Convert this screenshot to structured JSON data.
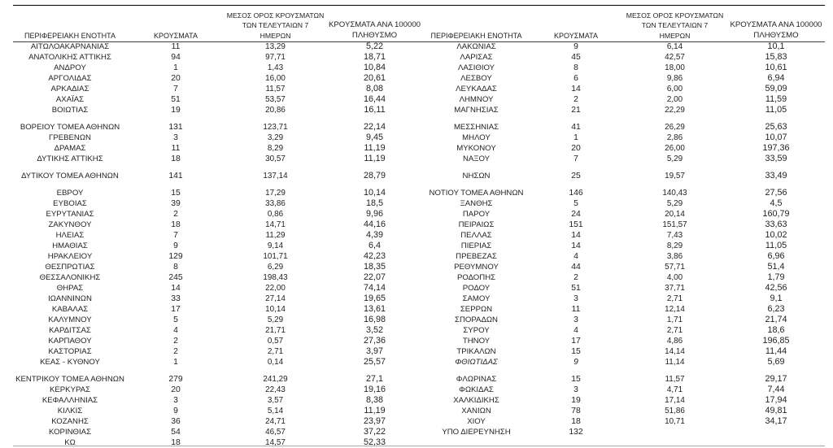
{
  "page": {
    "background": "#ffffff",
    "text_color": "#1f1f1f"
  },
  "styles": {
    "top_border_color": "#000000",
    "header_rule_color": "#3f3f3f",
    "bottom_border_color": "#a8a8a8"
  },
  "table": {
    "columns": {
      "region": "ΠΕΡΙΦΕΡΕΙΑΚΗ ΕΝΟΤΗΤΑ",
      "cases": "ΚΡΟΥΣΜΑΤΑ",
      "avg7_lines": [
        "ΜΕΣΟΣ ΟΡΟΣ ΚΡΟΥΣΜΑΤΩΝ",
        "ΤΩΝ ΤΕΛΕΥΤΑΙΩΝ 7",
        "ΗΜΕΡΩΝ"
      ],
      "per100k_lines": [
        "ΚΡΟΥΣΜΑΤΑ ΑΝΑ 100000",
        "ΠΛΗΘΥΣΜΟ"
      ]
    },
    "left_rows": [
      {
        "region": "ΑΙΤΩΛΟΑΚΑΡΝΑΝΙΑΣ",
        "cases": "11",
        "avg7": "13,29",
        "per100k": "5,22"
      },
      {
        "region": "ΑΝΑΤΟΛΙΚΗΣ ΑΤΤΙΚΗΣ",
        "cases": "94",
        "avg7": "97,71",
        "per100k": "18,71"
      },
      {
        "region": "ΑΝΔΡΟΥ",
        "cases": "1",
        "avg7": "1,43",
        "per100k": "10,84"
      },
      {
        "region": "ΑΡΓΟΛΙΔΑΣ",
        "cases": "20",
        "avg7": "16,00",
        "per100k": "20,61"
      },
      {
        "region": "ΑΡΚΑΔΙΑΣ",
        "cases": "7",
        "avg7": "11,57",
        "per100k": "8,08"
      },
      {
        "region": "ΑΧΑΪΑΣ",
        "cases": "51",
        "avg7": "53,57",
        "per100k": "16,44"
      },
      {
        "region": "ΒΟΙΩΤΙΑΣ",
        "cases": "19",
        "avg7": "20,86",
        "per100k": "16,11"
      },
      {
        "sep": true
      },
      {
        "region": "ΒΟΡΕΙΟΥ ΤΟΜΕΑ ΑΘΗΝΩΝ",
        "cases": "131",
        "avg7": "123,71",
        "per100k": "22,14"
      },
      {
        "region": "ΓΡΕΒΕΝΩΝ",
        "cases": "3",
        "avg7": "3,29",
        "per100k": "9,45"
      },
      {
        "region": "ΔΡΑΜΑΣ",
        "cases": "11",
        "avg7": "8,29",
        "per100k": "11,19"
      },
      {
        "region": "ΔΥΤΙΚΗΣ ΑΤΤΙΚΗΣ",
        "cases": "18",
        "avg7": "30,57",
        "per100k": "11,19"
      },
      {
        "sep": true
      },
      {
        "region": "ΔΥΤΙΚΟΥ ΤΟΜΕΑ ΑΘΗΝΩΝ",
        "cases": "141",
        "avg7": "137,14",
        "per100k": "28,79"
      },
      {
        "sep": true
      },
      {
        "region": "ΕΒΡΟΥ",
        "cases": "15",
        "avg7": "17,29",
        "per100k": "10,14"
      },
      {
        "region": "ΕΥΒΟΙΑΣ",
        "cases": "39",
        "avg7": "33,86",
        "per100k": "18,5"
      },
      {
        "region": "ΕΥΡΥΤΑΝΙΑΣ",
        "cases": "2",
        "avg7": "0,86",
        "per100k": "9,96"
      },
      {
        "region": "ΖΑΚΥΝΘΟΥ",
        "cases": "18",
        "avg7": "14,71",
        "per100k": "44,16"
      },
      {
        "region": "ΗΛΕΙΑΣ",
        "cases": "7",
        "avg7": "11,29",
        "per100k": "4,39"
      },
      {
        "region": "ΗΜΑΘΙΑΣ",
        "cases": "9",
        "avg7": "9,14",
        "per100k": "6,4"
      },
      {
        "region": "ΗΡΑΚΛΕΙΟΥ",
        "cases": "129",
        "avg7": "101,71",
        "per100k": "42,23"
      },
      {
        "region": "ΘΕΣΠΡΩΤΙΑΣ",
        "cases": "8",
        "avg7": "6,29",
        "per100k": "18,35"
      },
      {
        "region": "ΘΕΣΣΑΛΟΝΙΚΗΣ",
        "cases": "245",
        "avg7": "198,43",
        "per100k": "22,07"
      },
      {
        "region": "ΘΗΡΑΣ",
        "cases": "14",
        "avg7": "22,00",
        "per100k": "74,14"
      },
      {
        "region": "ΙΩΑΝΝΙΝΩΝ",
        "cases": "33",
        "avg7": "27,14",
        "per100k": "19,65"
      },
      {
        "region": "ΚΑΒΑΛΑΣ",
        "cases": "17",
        "avg7": "10,14",
        "per100k": "13,61"
      },
      {
        "region": "ΚΑΛΥΜΝΟΥ",
        "cases": "5",
        "avg7": "5,29",
        "per100k": "16,98"
      },
      {
        "region": "ΚΑΡΔΙΤΣΑΣ",
        "cases": "4",
        "avg7": "21,71",
        "per100k": "3,52"
      },
      {
        "region": "ΚΑΡΠΑΘΟΥ",
        "cases": "2",
        "avg7": "0,57",
        "per100k": "27,36"
      },
      {
        "region": "ΚΑΣΤΟΡΙΑΣ",
        "cases": "2",
        "avg7": "2,71",
        "per100k": "3,97"
      },
      {
        "region": "ΚΕΑΣ - ΚΥΘΝΟΥ",
        "cases": "1",
        "avg7": "0,14",
        "per100k": "25,57"
      },
      {
        "sep": true
      },
      {
        "region": "ΚΕΝΤΡΙΚΟΥ ΤΟΜΕΑ ΑΘΗΝΩΝ",
        "cases": "279",
        "avg7": "241,29",
        "per100k": "27,1"
      },
      {
        "region": "ΚΕΡΚΥΡΑΣ",
        "cases": "20",
        "avg7": "22,43",
        "per100k": "19,16"
      },
      {
        "region": "ΚΕΦΑΛΛΗΝΙΑΣ",
        "cases": "3",
        "avg7": "3,57",
        "per100k": "8,38"
      },
      {
        "region": "ΚΙΛΚΙΣ",
        "cases": "9",
        "avg7": "5,14",
        "per100k": "11,19"
      },
      {
        "region": "ΚΟΖΑΝΗΣ",
        "cases": "36",
        "avg7": "24,71",
        "per100k": "23,97"
      },
      {
        "region": "ΚΟΡΙΝΘΙΑΣ",
        "cases": "54",
        "avg7": "46,57",
        "per100k": "37,22"
      },
      {
        "region": "ΚΩ",
        "cases": "18",
        "avg7": "14,57",
        "per100k": "52,33"
      }
    ],
    "right_rows": [
      {
        "region": "ΛΑΚΩΝΙΑΣ",
        "cases": "9",
        "avg7": "6,14",
        "per100k": "10,1"
      },
      {
        "region": "ΛΑΡΙΣΑΣ",
        "cases": "45",
        "avg7": "42,57",
        "per100k": "15,83"
      },
      {
        "region": "ΛΑΣΙΘΙΟΥ",
        "cases": "8",
        "avg7": "18,00",
        "per100k": "10,61"
      },
      {
        "region": "ΛΕΣΒΟΥ",
        "cases": "6",
        "avg7": "9,86",
        "per100k": "6,94"
      },
      {
        "region": "ΛΕΥΚΑΔΑΣ",
        "cases": "14",
        "avg7": "6,00",
        "per100k": "59,09"
      },
      {
        "region": "ΛΗΜΝΟΥ",
        "cases": "2",
        "avg7": "2,00",
        "per100k": "11,59"
      },
      {
        "region": "ΜΑΓΝΗΣΙΑΣ",
        "cases": "21",
        "avg7": "22,29",
        "per100k": "11,05"
      },
      {
        "sep": true
      },
      {
        "region": "ΜΕΣΣΗΝΙΑΣ",
        "cases": "41",
        "avg7": "26,29",
        "per100k": "25,63"
      },
      {
        "region": "ΜΗΛΟΥ",
        "cases": "1",
        "avg7": "2,86",
        "per100k": "10,07"
      },
      {
        "region": "ΜΥΚΟΝΟΥ",
        "cases": "20",
        "avg7": "26,00",
        "per100k": "197,36"
      },
      {
        "region": "ΝΑΞΟΥ",
        "cases": "7",
        "avg7": "5,29",
        "per100k": "33,59"
      },
      {
        "sep": true
      },
      {
        "region": "ΝΗΣΩΝ",
        "cases": "25",
        "avg7": "19,57",
        "per100k": "33,49"
      },
      {
        "sep": true
      },
      {
        "region": "ΝΟΤΙΟΥ ΤΟΜΕΑ ΑΘΗΝΩΝ",
        "cases": "146",
        "avg7": "140,43",
        "per100k": "27,56"
      },
      {
        "region": "ΞΑΝΘΗΣ",
        "cases": "5",
        "avg7": "5,29",
        "per100k": "4,5"
      },
      {
        "region": "ΠΑΡΟΥ",
        "cases": "24",
        "avg7": "20,14",
        "per100k": "160,79"
      },
      {
        "region": "ΠΕΙΡΑΙΩΣ",
        "cases": "151",
        "avg7": "151,57",
        "per100k": "33,63"
      },
      {
        "region": "ΠΕΛΛΑΣ",
        "cases": "14",
        "avg7": "7,43",
        "per100k": "10,02"
      },
      {
        "region": "ΠΙΕΡΙΑΣ",
        "cases": "14",
        "avg7": "8,29",
        "per100k": "11,05"
      },
      {
        "region": "ΠΡΕΒΕΖΑΣ",
        "cases": "4",
        "avg7": "3,86",
        "per100k": "6,96"
      },
      {
        "region": "ΡΕΘΥΜΝΟΥ",
        "cases": "44",
        "avg7": "57,71",
        "per100k": "51,4"
      },
      {
        "region": "ΡΟΔΟΠΗΣ",
        "cases": "2",
        "avg7": "4,00",
        "per100k": "1,79"
      },
      {
        "region": "ΡΟΔΟΥ",
        "cases": "51",
        "avg7": "37,71",
        "per100k": "42,56"
      },
      {
        "region": "ΣΑΜΟΥ",
        "cases": "3",
        "avg7": "2,71",
        "per100k": "9,1"
      },
      {
        "region": "ΣΕΡΡΩΝ",
        "cases": "11",
        "avg7": "12,14",
        "per100k": "6,23"
      },
      {
        "region": "ΣΠΟΡΑΔΩΝ",
        "cases": "3",
        "avg7": "1,71",
        "per100k": "21,74"
      },
      {
        "region": "ΣΥΡΟΥ",
        "cases": "4",
        "avg7": "2,71",
        "per100k": "18,6"
      },
      {
        "region": "ΤΗΝΟΥ",
        "cases": "17",
        "avg7": "4,86",
        "per100k": "196,85"
      },
      {
        "region": "ΤΡΙΚΑΛΩΝ",
        "cases": "15",
        "avg7": "14,14",
        "per100k": "11,44"
      },
      {
        "region": "ΦΘΙΩΤΙΔΑΣ",
        "cases": "9",
        "avg7": "11,14",
        "per100k": "5,69",
        "italic": true
      },
      {
        "sep": true
      },
      {
        "region": "ΦΛΩΡΙΝΑΣ",
        "cases": "15",
        "avg7": "11,57",
        "per100k": "29,17"
      },
      {
        "region": "ΦΩΚΙΔΑΣ",
        "cases": "3",
        "avg7": "4,71",
        "per100k": "7,44"
      },
      {
        "region": "ΧΑΛΚΙΔΙΚΗΣ",
        "cases": "19",
        "avg7": "17,14",
        "per100k": "17,94"
      },
      {
        "region": "ΧΑΝΙΩΝ",
        "cases": "78",
        "avg7": "51,86",
        "per100k": "49,81"
      },
      {
        "region": "ΧΙΟΥ",
        "cases": "18",
        "avg7": "10,71",
        "per100k": "34,17"
      },
      {
        "region": "ΥΠΟ ΔΙΕΡΕΥΝΗΣΗ",
        "cases": "132",
        "avg7": "",
        "per100k": ""
      },
      {
        "region": "",
        "cases": "",
        "avg7": "",
        "per100k": ""
      }
    ]
  }
}
